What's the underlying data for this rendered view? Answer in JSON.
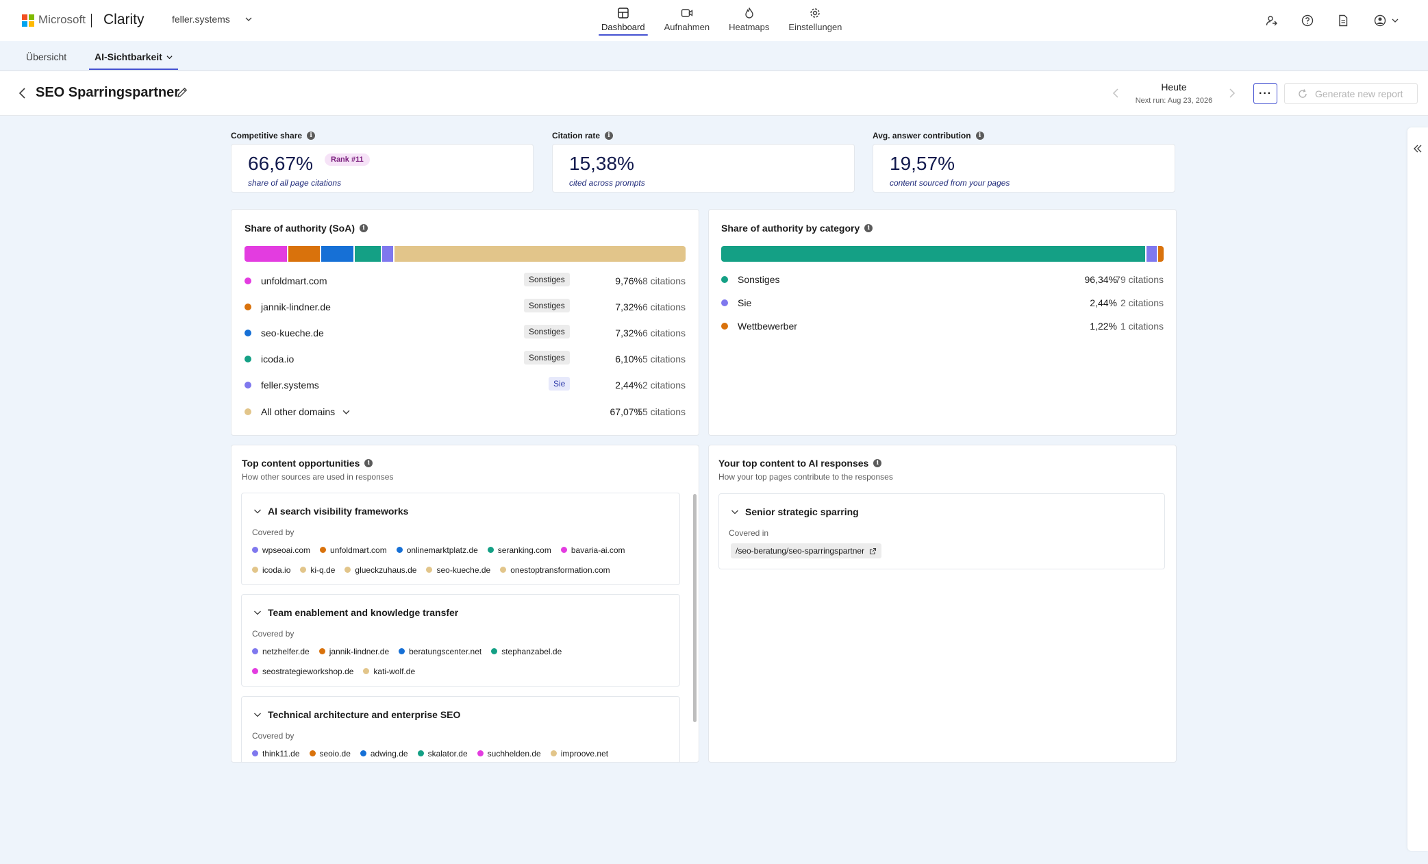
{
  "brand": {
    "company": "Microsoft",
    "product": "Clarity",
    "project": "feller.systems"
  },
  "nav": [
    {
      "label": "Dashboard",
      "icon": "dashboard-icon",
      "active": true
    },
    {
      "label": "Aufnahmen",
      "icon": "video-icon",
      "active": false
    },
    {
      "label": "Heatmaps",
      "icon": "flame-icon",
      "active": false
    },
    {
      "label": "Einstellungen",
      "icon": "gear-icon",
      "active": false
    }
  ],
  "subnav": {
    "overview": "Übersicht",
    "ai": "AI-Sichtbarkeit"
  },
  "header": {
    "title": "SEO Sparringspartner",
    "date_label": "Heute",
    "next_run": "Next run: Aug 23, 2026",
    "more": "···",
    "generate": "Generate new report"
  },
  "kpis": [
    {
      "label": "Competitive share",
      "value": "66,67%",
      "sub": "share of all page citations",
      "badge": "Rank #11"
    },
    {
      "label": "Citation rate",
      "value": "15,38%",
      "sub": "cited across prompts"
    },
    {
      "label": "Avg. answer contribution",
      "value": "19,57%",
      "sub": "content sourced from your pages"
    }
  ],
  "soa": {
    "title": "Share of authority (SoA)",
    "colors": {
      "unfoldmart": "#e33ce0",
      "jannik": "#d9720c",
      "seokueche": "#1670d6",
      "icoda": "#14a085",
      "feller": "#7f78ee",
      "other": "#e2c58a"
    },
    "rows": [
      {
        "domain": "unfoldmart.com",
        "tag": "Sonstiges",
        "pct": "9,76%",
        "citations": "8 citations",
        "color": "#e33ce0",
        "share": 9.76
      },
      {
        "domain": "jannik-lindner.de",
        "tag": "Sonstiges",
        "pct": "7,32%",
        "citations": "6 citations",
        "color": "#d9720c",
        "share": 7.32
      },
      {
        "domain": "seo-kueche.de",
        "tag": "Sonstiges",
        "pct": "7,32%",
        "citations": "6 citations",
        "color": "#1670d6",
        "share": 7.32
      },
      {
        "domain": "icoda.io",
        "tag": "Sonstiges",
        "pct": "6,10%",
        "citations": "5 citations",
        "color": "#14a085",
        "share": 6.1
      },
      {
        "domain": "feller.systems",
        "tag": "Sie",
        "pct": "2,44%",
        "citations": "2 citations",
        "color": "#7f78ee",
        "share": 2.44
      },
      {
        "domain": "All other domains",
        "tag": "",
        "pct": "67,07%",
        "citations": "55 citations",
        "color": "#e2c58a",
        "share": 67.07
      }
    ]
  },
  "category": {
    "title": "Share of authority by category",
    "rows": [
      {
        "label": "Sonstiges",
        "pct": "96,34%",
        "citations": "79 citations",
        "color": "#14a085",
        "share": 96.34
      },
      {
        "label": "Sie",
        "pct": "2,44%",
        "citations": "2 citations",
        "color": "#7f78ee",
        "share": 2.44
      },
      {
        "label": "Wettbewerber",
        "pct": "1,22%",
        "citations": "1 citations",
        "color": "#d9720c",
        "share": 1.22
      }
    ]
  },
  "opportunities": {
    "title": "Top content opportunities",
    "subtitle": "How other sources are used in responses",
    "covered_by": "Covered by",
    "items": [
      {
        "title": "AI search visibility frameworks",
        "domains": [
          {
            "name": "wpseoai.com",
            "color": "#7f78ee"
          },
          {
            "name": "unfoldmart.com",
            "color": "#d9720c"
          },
          {
            "name": "onlinemarktplatz.de",
            "color": "#1670d6"
          },
          {
            "name": "seranking.com",
            "color": "#14a085"
          },
          {
            "name": "bavaria-ai.com",
            "color": "#e33ce0"
          },
          {
            "name": "icoda.io",
            "color": "#e2c58a"
          },
          {
            "name": "ki-q.de",
            "color": "#e2c58a"
          },
          {
            "name": "glueckzuhaus.de",
            "color": "#e2c58a"
          },
          {
            "name": "seo-kueche.de",
            "color": "#e2c58a"
          },
          {
            "name": "onestoptransformation.com",
            "color": "#e2c58a"
          }
        ]
      },
      {
        "title": "Team enablement and knowledge transfer",
        "domains": [
          {
            "name": "netzhelfer.de",
            "color": "#7f78ee"
          },
          {
            "name": "jannik-lindner.de",
            "color": "#d9720c"
          },
          {
            "name": "beratungscenter.net",
            "color": "#1670d6"
          },
          {
            "name": "stephanzabel.de",
            "color": "#14a085"
          },
          {
            "name": "seostrategieworkshop.de",
            "color": "#e33ce0"
          },
          {
            "name": "kati-wolf.de",
            "color": "#e2c58a"
          }
        ]
      },
      {
        "title": "Technical architecture and enterprise SEO",
        "domains": [
          {
            "name": "think11.de",
            "color": "#7f78ee"
          },
          {
            "name": "seoio.de",
            "color": "#d9720c"
          },
          {
            "name": "adwing.de",
            "color": "#1670d6"
          },
          {
            "name": "skalator.de",
            "color": "#14a085"
          },
          {
            "name": "suchhelden.de",
            "color": "#e33ce0"
          },
          {
            "name": "improove.net",
            "color": "#e2c58a"
          }
        ]
      }
    ]
  },
  "top_content": {
    "title": "Your top content to AI responses",
    "subtitle": "How your top pages contribute to the responses",
    "item_title": "Senior strategic sparring",
    "covered_in": "Covered in",
    "url": "/seo-beratung/seo-sparringspartner"
  }
}
